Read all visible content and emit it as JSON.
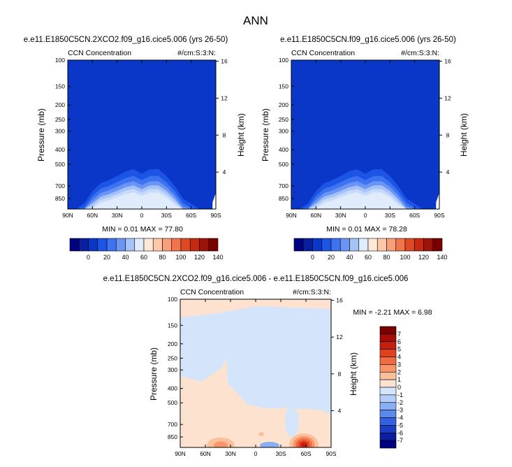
{
  "main_title": "ANN",
  "chart_data": [
    {
      "type": "heatmap",
      "run_title": "e.e11.E1850C5CN.2XCO2.f09_g16.cice5.006 (yrs 26-50)",
      "variable": "CCN Concentration",
      "units": "#/cm:S:3:N:",
      "ylabel": "Pressure (mb)",
      "y2label": "Height (km)",
      "x_ticks": [
        "90N",
        "60N",
        "30N",
        "0",
        "30S",
        "60S",
        "90S"
      ],
      "y_ticks": [
        "100",
        "150",
        "200",
        "250",
        "300",
        "400",
        "500",
        "700",
        "850"
      ],
      "y2_ticks": [
        "16",
        "12",
        "8",
        "4"
      ],
      "min_max_text": "MIN =  0.01  MAX =  77.80",
      "xlim": [
        90,
        -90
      ],
      "ylim": [
        1000,
        100
      ],
      "colorbar_labels": [
        "0",
        "20",
        "40",
        "60",
        "80",
        "100",
        "120",
        "140"
      ],
      "surface_profile": {
        "lat": [
          80,
          70,
          60,
          50,
          40,
          30,
          20,
          10,
          0,
          -10,
          -20,
          -30,
          -40,
          -50,
          -60,
          -70
        ],
        "p": [
          1000,
          920,
          760,
          670,
          640,
          600,
          560,
          540,
          580,
          540,
          540,
          600,
          700,
          850,
          920,
          1000
        ]
      },
      "levels": [
        {
          "value": 10,
          "p_offset": 0
        },
        {
          "value": 20,
          "p_offset": 60
        },
        {
          "value": 30,
          "p_offset": 110
        },
        {
          "value": 40,
          "p_offset": 155
        },
        {
          "value": 50,
          "p_offset": 195
        },
        {
          "value": 60,
          "p_offset": 235
        }
      ]
    },
    {
      "type": "heatmap",
      "run_title": "e.e11.E1850C5CN.f09_g16.cice5.006 (yrs 26-50)",
      "variable": "CCN Concentration",
      "units": "#/cm:S:3:N:",
      "ylabel": "Pressure (mb)",
      "y2label": "Height (km)",
      "x_ticks": [
        "90N",
        "60N",
        "30N",
        "0",
        "30S",
        "60S",
        "90S"
      ],
      "y_ticks": [
        "100",
        "150",
        "200",
        "250",
        "300",
        "400",
        "500",
        "700",
        "850"
      ],
      "y2_ticks": [
        "16",
        "12",
        "8",
        "4"
      ],
      "min_max_text": "MIN =  0.01  MAX =  78.28",
      "xlim": [
        90,
        -90
      ],
      "ylim": [
        1000,
        100
      ],
      "colorbar_labels": [
        "0",
        "20",
        "40",
        "60",
        "80",
        "100",
        "120",
        "140"
      ],
      "surface_profile": {
        "lat": [
          80,
          70,
          60,
          50,
          40,
          30,
          20,
          10,
          0,
          -10,
          -20,
          -30,
          -40,
          -50,
          -60,
          -70
        ],
        "p": [
          1000,
          920,
          760,
          670,
          640,
          600,
          560,
          540,
          580,
          540,
          540,
          600,
          700,
          850,
          920,
          1000
        ]
      },
      "levels": [
        {
          "value": 10,
          "p_offset": 0
        },
        {
          "value": 20,
          "p_offset": 60
        },
        {
          "value": 30,
          "p_offset": 110
        },
        {
          "value": 40,
          "p_offset": 155
        },
        {
          "value": 50,
          "p_offset": 195
        },
        {
          "value": 60,
          "p_offset": 235
        }
      ]
    },
    {
      "type": "heatmap",
      "run_title": "e.e11.E1850C5CN.2XCO2.f09_g16.cice5.006 - e.e11.E1850C5CN.f09_g16.cice5.006",
      "variable": "CCN Concentration",
      "units": "#/cm:S:3:N:",
      "ylabel": "Pressure (mb)",
      "y2label": "Height (km)",
      "x_ticks": [
        "90N",
        "60N",
        "30N",
        "0",
        "30S",
        "60S",
        "90S"
      ],
      "y_ticks": [
        "100",
        "150",
        "200",
        "250",
        "300",
        "400",
        "500",
        "700",
        "850"
      ],
      "y2_ticks": [
        "16",
        "12",
        "8",
        "4"
      ],
      "min_max_text": "MIN =  -2.21  MAX =   6.98",
      "xlim": [
        90,
        -90
      ],
      "ylim": [
        1000,
        100
      ],
      "colorbar_labels": [
        "7",
        "6",
        "5",
        "4",
        "3",
        "2",
        "1",
        "0",
        "-1",
        "-2",
        "-3",
        "-4",
        "-5",
        "-6",
        "-7"
      ]
    }
  ],
  "colors": {
    "abs_colorbar": [
      "#000080",
      "#0a1fa0",
      "#0a37c8",
      "#1c55e6",
      "#3d73f0",
      "#6a95f5",
      "#a5c3f7",
      "#e0ecfb",
      "#fde8d8",
      "#fbc8a8",
      "#f8a07a",
      "#f2744a",
      "#df4a24",
      "#c42a12",
      "#9e1208",
      "#7a0000"
    ],
    "diff_colorbar": [
      "#7a0000",
      "#a30d05",
      "#c4200e",
      "#e0421f",
      "#f26a3f",
      "#f8966a",
      "#fbbf9b",
      "#fde3cf",
      "#d4e5fb",
      "#b3cef8",
      "#8aaef3",
      "#5c89ee",
      "#3560e0",
      "#1c3cc4",
      "#0a1e9e",
      "#000080"
    ],
    "fill_base": "#0a37c8",
    "contour_ramp": [
      "#1c55e6",
      "#3d73f0",
      "#6a95f5",
      "#a5c3f7",
      "#c7dafa",
      "#e0ecfb"
    ],
    "diff_pos": "#fde3cf",
    "diff_neg": "#d4e5fb"
  }
}
